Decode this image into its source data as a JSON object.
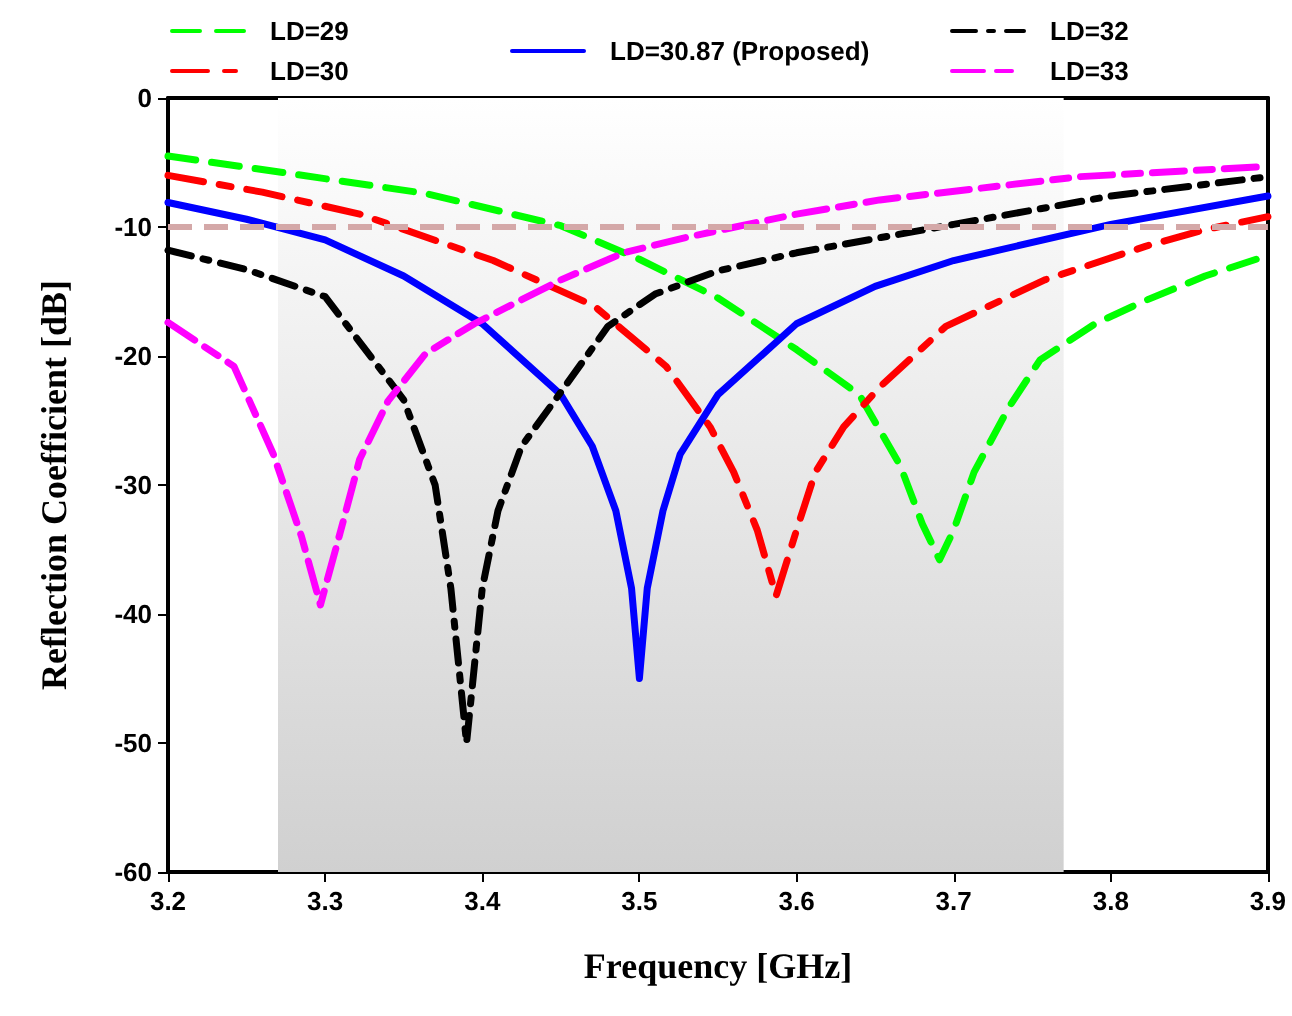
{
  "chart_data": {
    "type": "line",
    "xlabel": "Frequency [GHz]",
    "ylabel": "Reflection Coefficient [dB]",
    "xlim": [
      3.2,
      3.9
    ],
    "xticks": [
      3.2,
      3.3,
      3.4,
      3.5,
      3.6,
      3.7,
      3.8,
      3.9
    ],
    "ylim": [
      -60,
      0
    ],
    "yticks": [
      -60,
      -50,
      -40,
      -30,
      -20,
      -10,
      0
    ],
    "grid": false,
    "legend": "top",
    "marker": "none",
    "bands": [
      {
        "axis": "x",
        "from": 3.27,
        "to": 3.77,
        "color": "#d0d0d0"
      }
    ],
    "ref_lines": [
      {
        "axis": "y",
        "value": -10,
        "color": "#d4a8a8",
        "line_style": "dashed"
      }
    ],
    "series": [
      {
        "name": "LD=29",
        "color": "#00ff00",
        "line_style": "dashed",
        "x": [
          3.2,
          3.28,
          3.364,
          3.45,
          3.5,
          3.55,
          3.6,
          3.64,
          3.666,
          3.68,
          3.691,
          3.7,
          3.713,
          3.735,
          3.755,
          3.79,
          3.822,
          3.86,
          3.9
        ],
        "values": [
          -4.5,
          -5.9,
          -7.4,
          -9.9,
          -12.5,
          -15.5,
          -19.5,
          -23,
          -28.5,
          -33,
          -35.8,
          -33.5,
          -29,
          -24,
          -20.3,
          -17.5,
          -15.7,
          -13.8,
          -12.2
        ]
      },
      {
        "name": "LD=30",
        "color": "#ff0000",
        "line_style": "dashed",
        "x": [
          3.2,
          3.26,
          3.322,
          3.407,
          3.471,
          3.517,
          3.545,
          3.56,
          3.575,
          3.587,
          3.6,
          3.612,
          3.63,
          3.653,
          3.695,
          3.758,
          3.822,
          3.86,
          3.9
        ],
        "values": [
          -6,
          -7.3,
          -9,
          -12.6,
          -16.1,
          -20.8,
          -25.5,
          -29,
          -33.5,
          -38.6,
          -33.5,
          -29,
          -25.5,
          -22.4,
          -17.7,
          -14.1,
          -11.5,
          -10.2,
          -9.2
        ]
      },
      {
        "name": "LD=30.87 (Proposed)",
        "color": "#0000ff",
        "line_style": "solid",
        "x": [
          3.2,
          3.25,
          3.3,
          3.35,
          3.4,
          3.45,
          3.47,
          3.485,
          3.495,
          3.5,
          3.505,
          3.515,
          3.526,
          3.55,
          3.6,
          3.65,
          3.7,
          3.8,
          3.9
        ],
        "values": [
          -8.1,
          -9.4,
          -11,
          -13.8,
          -17.5,
          -23,
          -27,
          -32,
          -38,
          -45,
          -38,
          -32,
          -27.6,
          -23,
          -17.5,
          -14.6,
          -12.6,
          -9.8,
          -7.6
        ]
      },
      {
        "name": "LD=32",
        "color": "#000000",
        "line_style": "dashed",
        "x": [
          3.2,
          3.25,
          3.3,
          3.35,
          3.37,
          3.38,
          3.39,
          3.4,
          3.41,
          3.425,
          3.45,
          3.48,
          3.51,
          3.55,
          3.6,
          3.7,
          3.8,
          3.9
        ],
        "values": [
          -11.8,
          -13.3,
          -15.4,
          -23.4,
          -30,
          -38,
          -50,
          -38,
          -32,
          -27,
          -22.8,
          -17.7,
          -15.2,
          -13.4,
          -12,
          -9.8,
          -7.6,
          -6.1
        ]
      },
      {
        "name": "LD=33",
        "color": "#ff00ff",
        "line_style": "dashed",
        "x": [
          3.2,
          3.242,
          3.267,
          3.285,
          3.297,
          3.31,
          3.322,
          3.34,
          3.364,
          3.395,
          3.45,
          3.49,
          3.53,
          3.6,
          3.653,
          3.78,
          3.9
        ],
        "values": [
          -17.4,
          -20.8,
          -27.6,
          -34,
          -39.3,
          -33.5,
          -28,
          -23.5,
          -19.8,
          -17.5,
          -14.1,
          -12,
          -10.8,
          -9,
          -7.9,
          -6.1,
          -5.3
        ]
      }
    ]
  }
}
